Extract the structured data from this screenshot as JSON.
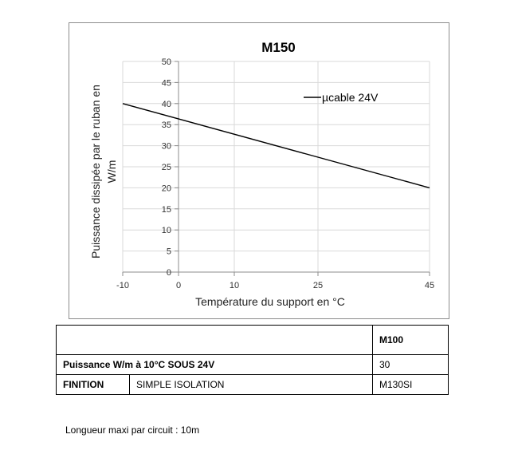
{
  "chart_data": {
    "type": "line",
    "title": "M150",
    "ylabel": "Puissance dissipée par le ruban en W/m",
    "xlabel": "Température du support en °C",
    "x_ticks": [
      -10,
      0,
      10,
      25,
      45
    ],
    "y_ticks": [
      0,
      5,
      10,
      15,
      20,
      25,
      30,
      35,
      40,
      45,
      50
    ],
    "ylim": [
      0,
      50
    ],
    "xlim": [
      -10,
      45
    ],
    "grid": true,
    "legend_position": "top-right",
    "series": [
      {
        "name": "µcable 24V",
        "color": "#000000",
        "x": [
          -10,
          45
        ],
        "y": [
          40,
          20
        ]
      }
    ]
  },
  "table": {
    "header": [
      "",
      "M100"
    ],
    "rows": [
      {
        "label": "Puissance W/m à 10°C SOUS 24V",
        "value": "30"
      },
      {
        "label": "FINITION",
        "sub": "SIMPLE ISOLATION",
        "value": "M130SI"
      }
    ]
  },
  "footnote": "Longueur maxi par circuit : 10m"
}
